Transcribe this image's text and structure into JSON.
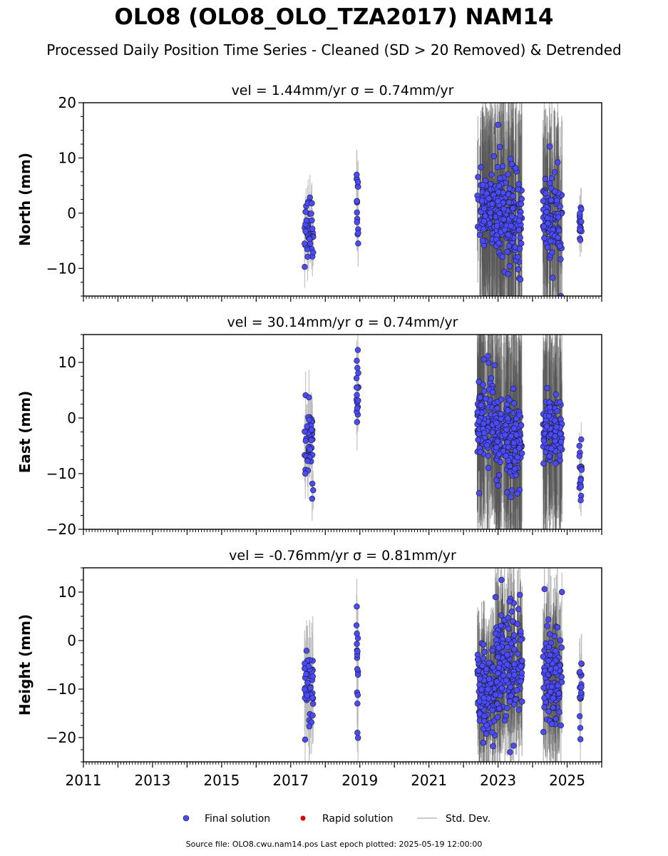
{
  "title": "OLO8 (OLO8_OLO_TZA2017) NAM14",
  "subtitle": "Processed Daily Position Time Series - Cleaned (SD > 20 Removed) & Detrended",
  "source_line": "Source file: OLO8.cwu.nam14.pos  Last epoch plotted: 2025-05-19 12:00:00",
  "colors": {
    "final": "#4a4aff",
    "rapid": "#dd0000",
    "std": "#bbbbbb",
    "stdDense": "#555555"
  },
  "chart_data": [
    {
      "type": "scatter",
      "title": "vel = 1.44mm/yr   σ = 0.74mm/yr",
      "ylabel": "North (mm)",
      "xlim": [
        2011,
        2026
      ],
      "ylim": [
        -15,
        20
      ],
      "yticks": [
        -10,
        0,
        10,
        20
      ],
      "ytick_labels": [
        "−10",
        "0",
        "10",
        "20"
      ],
      "xticks": [
        2011,
        2013,
        2015,
        2017,
        2019,
        2021,
        2023,
        2025
      ],
      "xtick_labels": [
        "",
        "",
        "",
        "",
        "",
        "",
        "",
        ""
      ],
      "clusters": [
        {
          "x0": 2017.4,
          "x1": 2017.65,
          "n": 45,
          "mean": -2,
          "sd": 2.8,
          "err": 3.5
        },
        {
          "x0": 2018.9,
          "x1": 2018.96,
          "n": 16,
          "mean": 2.5,
          "sd": 4,
          "err": 4
        },
        {
          "x0": 2022.4,
          "x1": 2022.92,
          "n": 110,
          "mean": 0.5,
          "sd": 2.7,
          "err": 14
        },
        {
          "x0": 2022.92,
          "x1": 2023.7,
          "n": 170,
          "mean": -0.8,
          "sd": 3.8,
          "err": 16
        },
        {
          "x0": 2024.3,
          "x1": 2024.85,
          "n": 110,
          "mean": -0.5,
          "sd": 3.6,
          "err": 13
        },
        {
          "x0": 2025.35,
          "x1": 2025.42,
          "n": 18,
          "mean": -2,
          "sd": 2.3,
          "err": 3
        }
      ],
      "extremes": [
        {
          "x": 2023.0,
          "y": 16
        },
        {
          "x": 2023.05,
          "y": 12
        },
        {
          "x": 2022.88,
          "y": 10.3
        },
        {
          "x": 2024.82,
          "y": -15
        },
        {
          "x": 2023.65,
          "y": -12
        }
      ]
    },
    {
      "type": "scatter",
      "title": "vel = 30.14mm/yr   σ = 0.74mm/yr",
      "ylabel": "East (mm)",
      "xlim": [
        2011,
        2026
      ],
      "ylim": [
        -20,
        15
      ],
      "yticks": [
        -20,
        -10,
        0,
        10
      ],
      "ytick_labels": [
        "−20",
        "−10",
        "0",
        "10"
      ],
      "xticks": [
        2011,
        2013,
        2015,
        2017,
        2019,
        2021,
        2023,
        2025
      ],
      "xtick_labels": [
        "",
        "",
        "",
        "",
        "",
        "",
        "",
        ""
      ],
      "clusters": [
        {
          "x0": 2017.4,
          "x1": 2017.65,
          "n": 45,
          "mean": -4.5,
          "sd": 4,
          "err": 4
        },
        {
          "x0": 2018.9,
          "x1": 2018.96,
          "n": 16,
          "mean": 4,
          "sd": 3,
          "err": 4
        },
        {
          "x0": 2022.4,
          "x1": 2022.92,
          "n": 110,
          "mean": 0,
          "sd": 3.5,
          "err": 14
        },
        {
          "x0": 2022.92,
          "x1": 2023.7,
          "n": 170,
          "mean": -4,
          "sd": 3.5,
          "err": 16
        },
        {
          "x0": 2024.3,
          "x1": 2024.85,
          "n": 110,
          "mean": -2,
          "sd": 3,
          "err": 14
        },
        {
          "x0": 2025.35,
          "x1": 2025.42,
          "n": 18,
          "mean": -10,
          "sd": 3,
          "err": 3
        }
      ],
      "extremes": [
        {
          "x": 2022.45,
          "y": -13.5
        },
        {
          "x": 2022.9,
          "y": 9.5
        },
        {
          "x": 2018.93,
          "y": 9
        },
        {
          "x": 2023.4,
          "y": -13
        },
        {
          "x": 2017.62,
          "y": -14.5
        }
      ]
    },
    {
      "type": "scatter",
      "title": "vel = -0.76mm/yr   σ = 0.81mm/yr",
      "ylabel": "Height (mm)",
      "xlim": [
        2011,
        2026
      ],
      "ylim": [
        -25,
        15
      ],
      "yticks": [
        -20,
        -10,
        0,
        10
      ],
      "ytick_labels": [
        "−20",
        "−10",
        "0",
        "10"
      ],
      "xticks": [
        2011,
        2013,
        2015,
        2017,
        2019,
        2021,
        2023,
        2025
      ],
      "xtick_labels": [
        "2011",
        "2013",
        "2015",
        "2017",
        "2019",
        "2021",
        "2023",
        "2025"
      ],
      "clusters": [
        {
          "x0": 2017.4,
          "x1": 2017.65,
          "n": 45,
          "mean": -9,
          "sd": 4.5,
          "err": 8
        },
        {
          "x0": 2018.9,
          "x1": 2018.96,
          "n": 16,
          "mean": -5,
          "sd": 7,
          "err": 8
        },
        {
          "x0": 2022.4,
          "x1": 2022.92,
          "n": 110,
          "mean": -10,
          "sd": 5,
          "err": 10
        },
        {
          "x0": 2022.92,
          "x1": 2023.7,
          "n": 170,
          "mean": -5,
          "sd": 6,
          "err": 11
        },
        {
          "x0": 2024.3,
          "x1": 2024.85,
          "n": 110,
          "mean": -9,
          "sd": 5,
          "err": 11
        },
        {
          "x0": 2025.35,
          "x1": 2025.42,
          "n": 18,
          "mean": -10,
          "sd": 4,
          "err": 6
        }
      ],
      "extremes": [
        {
          "x": 2023.1,
          "y": 12.5
        },
        {
          "x": 2024.85,
          "y": 10
        },
        {
          "x": 2018.93,
          "y": -19
        },
        {
          "x": 2023.35,
          "y": -23
        },
        {
          "x": 2025.38,
          "y": -18
        }
      ]
    }
  ],
  "legend": {
    "final_label": "Final solution",
    "rapid_label": "Rapid solution",
    "std_label": "Std. Dev."
  }
}
